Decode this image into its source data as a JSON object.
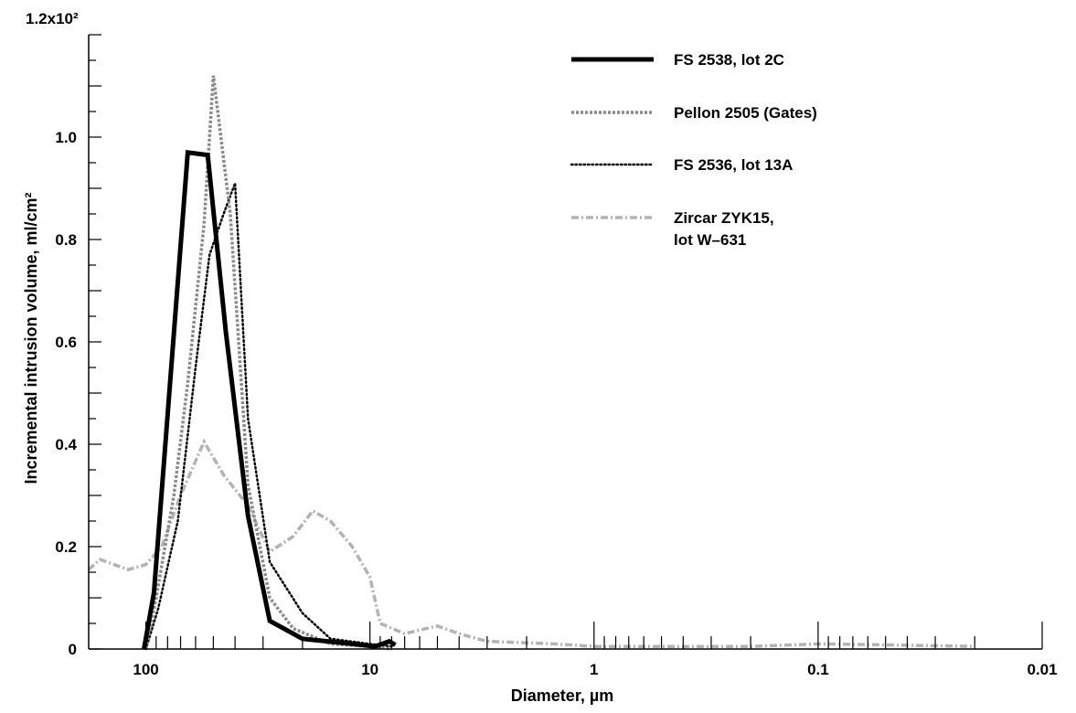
{
  "chart_data": {
    "type": "line",
    "title": "",
    "xlabel": "Diameter, µm",
    "ylabel": "Incremental intrusion volume, ml/cm²",
    "x_scale": "log",
    "x_reversed": true,
    "xlim": [
      180,
      0.01
    ],
    "ylim": [
      0,
      1.2
    ],
    "y_exponent_label": "1.2x10²",
    "x_tick_labels": [
      {
        "value": 100,
        "label": "100"
      },
      {
        "value": 10,
        "label": "10"
      },
      {
        "value": 1,
        "label": "1"
      },
      {
        "value": 0.1,
        "label": "0.1"
      },
      {
        "value": 0.01,
        "label": "0.01"
      }
    ],
    "y_tick_labels": [
      {
        "value": 0,
        "label": "0"
      },
      {
        "value": 0.2,
        "label": "0.2"
      },
      {
        "value": 0.4,
        "label": "0.4"
      },
      {
        "value": 0.6,
        "label": "0.6"
      },
      {
        "value": 0.8,
        "label": "0.8"
      },
      {
        "value": 1.0,
        "label": "1.0"
      }
    ],
    "grid": false,
    "legend_position": "top-right",
    "series": [
      {
        "name": "FS 2538, lot 2C",
        "style": "solid-thick",
        "color": "#000000",
        "points": [
          [
            102,
            0.0
          ],
          [
            92,
            0.11
          ],
          [
            65,
            0.97
          ],
          [
            53,
            0.965
          ],
          [
            44,
            0.62
          ],
          [
            35,
            0.26
          ],
          [
            28,
            0.055
          ],
          [
            20,
            0.02
          ],
          [
            12,
            0.01
          ],
          [
            9.5,
            0.005
          ],
          [
            8.2,
            0.015
          ],
          [
            7.7,
            0.008
          ]
        ]
      },
      {
        "name": "Pellon 2505 (Gates)",
        "style": "dash-x",
        "color": "#888888",
        "points": [
          [
            100,
            0.0
          ],
          [
            90,
            0.1
          ],
          [
            75,
            0.3
          ],
          [
            65,
            0.52
          ],
          [
            55,
            0.83
          ],
          [
            50,
            1.12
          ],
          [
            42,
            0.85
          ],
          [
            35,
            0.32
          ],
          [
            28,
            0.1
          ],
          [
            22,
            0.04
          ],
          [
            15,
            0.01
          ],
          [
            10,
            0.005
          ],
          [
            8,
            0.0
          ]
        ]
      },
      {
        "name": "FS 2536, lot 13A",
        "style": "dotted",
        "color": "#000000",
        "points": [
          [
            100,
            0.0
          ],
          [
            88,
            0.08
          ],
          [
            72,
            0.25
          ],
          [
            60,
            0.55
          ],
          [
            52,
            0.77
          ],
          [
            45,
            0.85
          ],
          [
            40,
            0.91
          ],
          [
            35,
            0.45
          ],
          [
            28,
            0.17
          ],
          [
            20,
            0.07
          ],
          [
            15,
            0.02
          ],
          [
            10,
            0.01
          ],
          [
            8,
            0.005
          ]
        ]
      },
      {
        "name": "Zircar ZYK15, lot W–631",
        "style": "dash-dot-light",
        "color": "#aaaaaa",
        "points": [
          [
            180,
            0.155
          ],
          [
            160,
            0.175
          ],
          [
            120,
            0.155
          ],
          [
            100,
            0.165
          ],
          [
            85,
            0.2
          ],
          [
            70,
            0.3
          ],
          [
            55,
            0.405
          ],
          [
            45,
            0.34
          ],
          [
            35,
            0.28
          ],
          [
            28,
            0.19
          ],
          [
            22,
            0.22
          ],
          [
            18,
            0.27
          ],
          [
            15,
            0.25
          ],
          [
            12,
            0.2
          ],
          [
            10,
            0.14
          ],
          [
            9,
            0.05
          ],
          [
            7,
            0.03
          ],
          [
            5,
            0.045
          ],
          [
            4,
            0.03
          ],
          [
            3,
            0.015
          ],
          [
            1.5,
            0.01
          ],
          [
            1.0,
            0.005
          ],
          [
            0.5,
            0.005
          ],
          [
            0.2,
            0.005
          ],
          [
            0.1,
            0.01
          ],
          [
            0.05,
            0.008
          ],
          [
            0.02,
            0.005
          ]
        ]
      }
    ]
  }
}
